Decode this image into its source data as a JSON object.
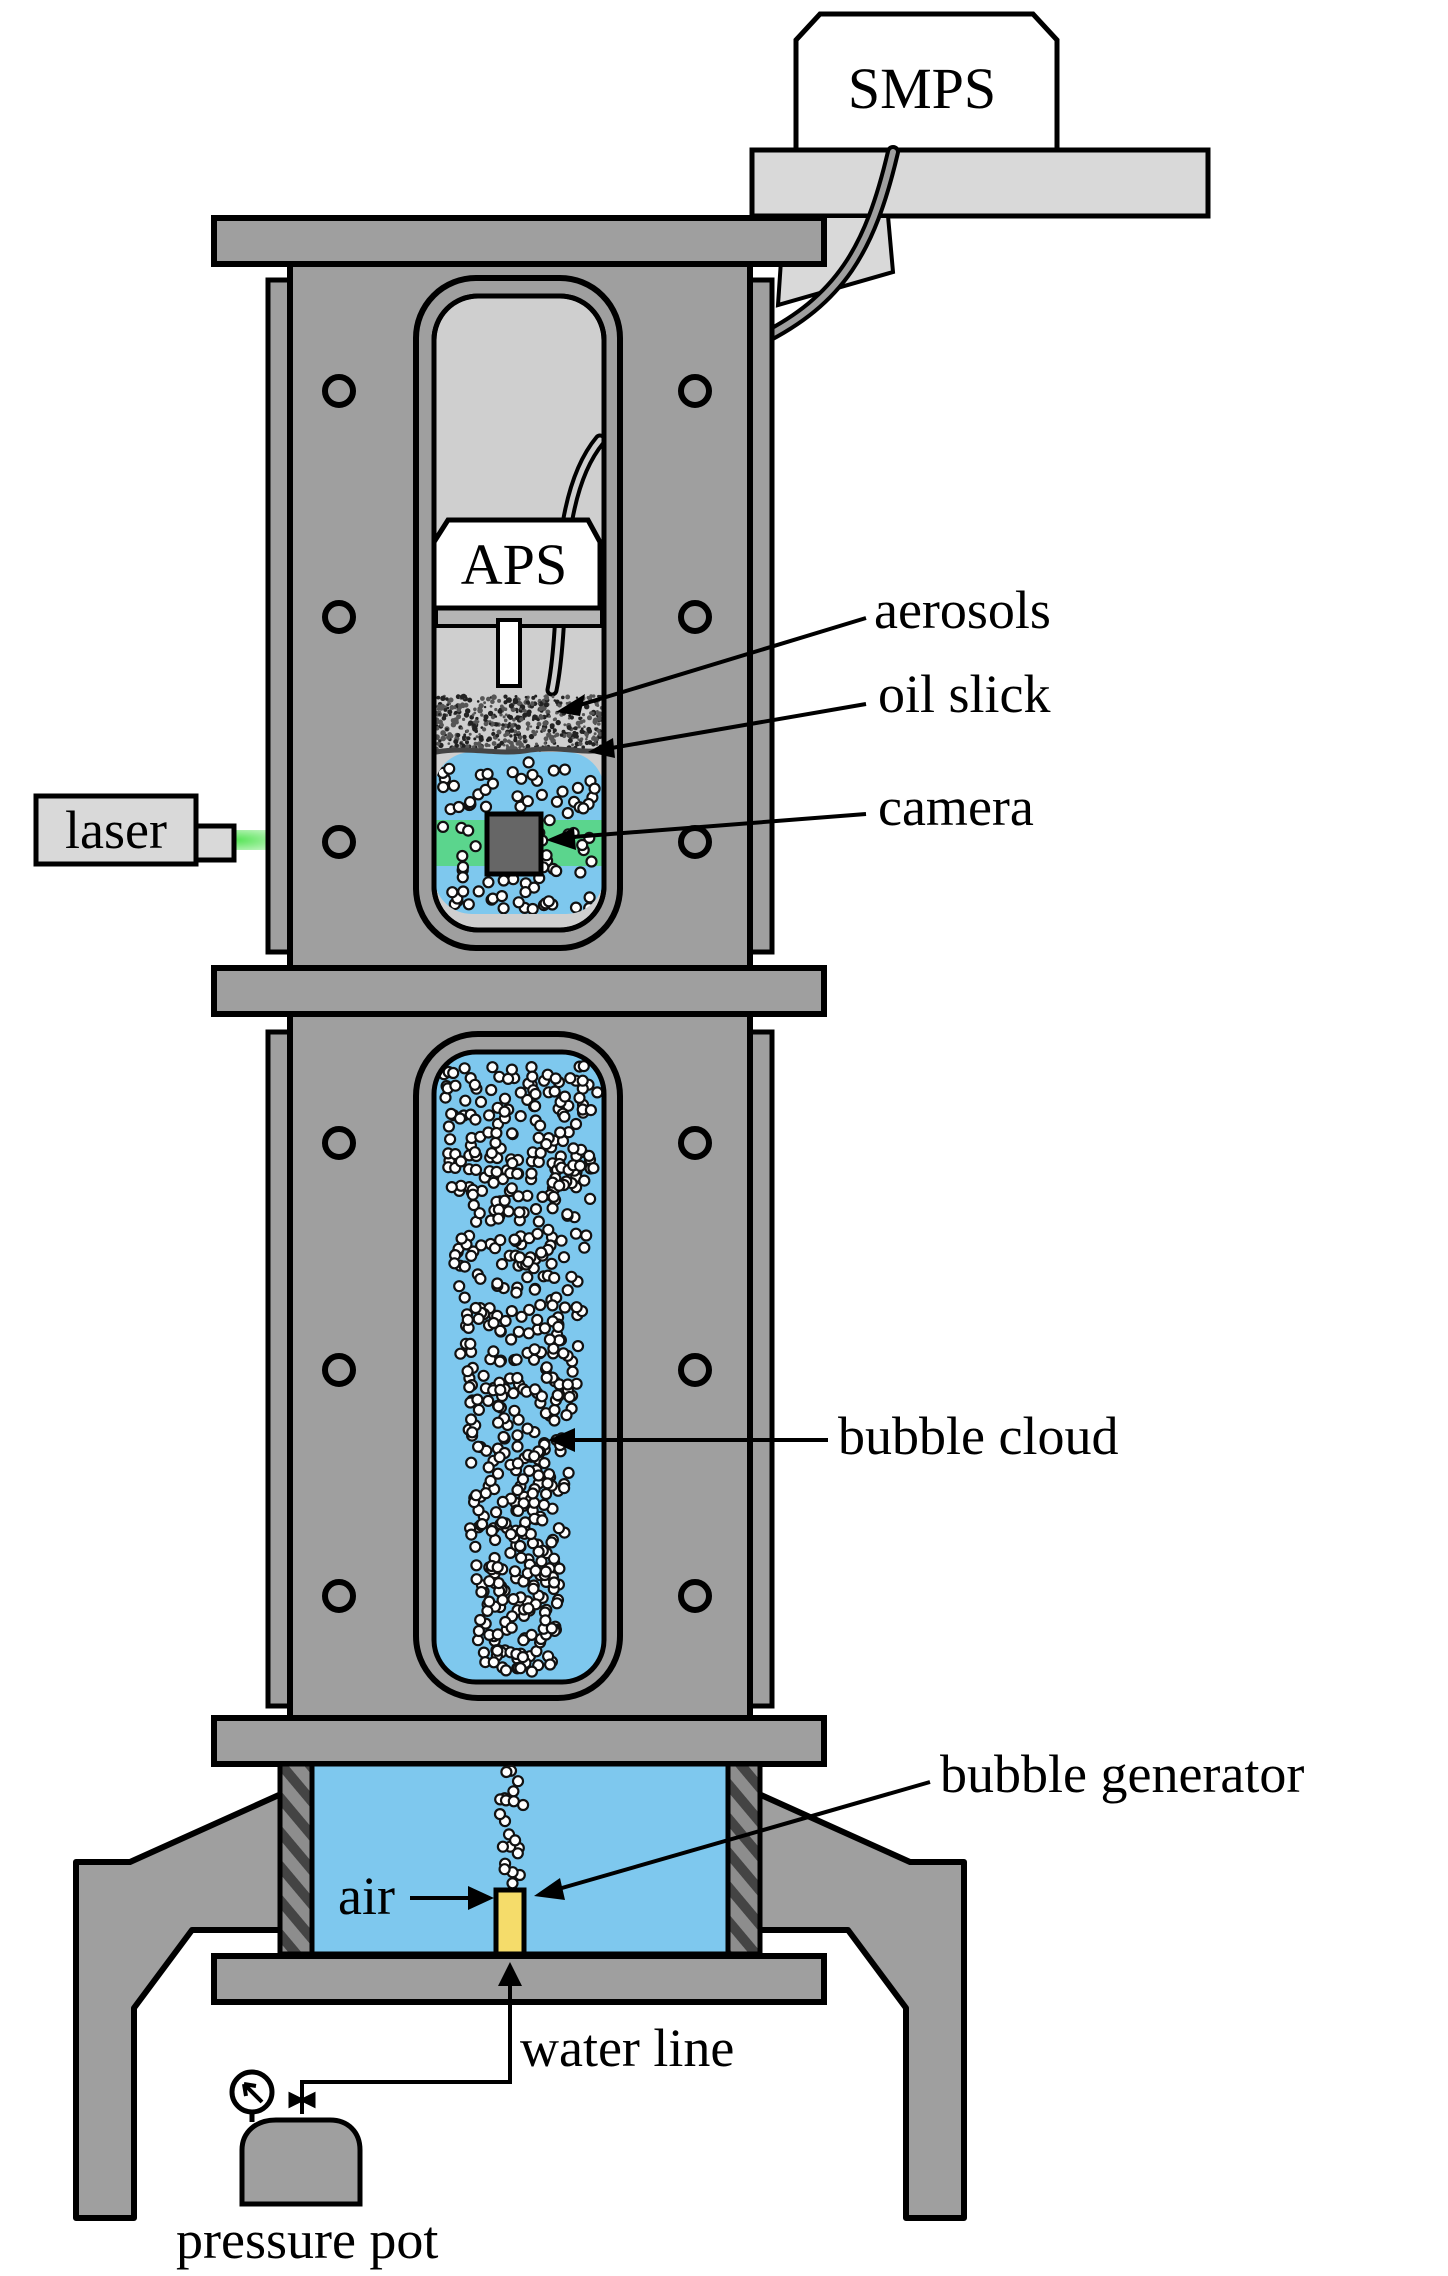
{
  "labels": {
    "smps": "SMPS",
    "aps": "APS",
    "laser": "laser",
    "aerosols": "aerosols",
    "oil_slick": "oil slick",
    "camera": "camera",
    "bubble_cloud": "bubble cloud",
    "bubble_generator": "bubble generator",
    "air": "air",
    "water_line": "water line",
    "pressure_pot": "pressure pot"
  },
  "colors": {
    "frame": "#9f9f9f",
    "window_air": "#cfcfcf",
    "water": "#7ec8ee",
    "laser_beam": "#3ee03e",
    "generator": "#f5dc6a",
    "outline": "#000000"
  }
}
